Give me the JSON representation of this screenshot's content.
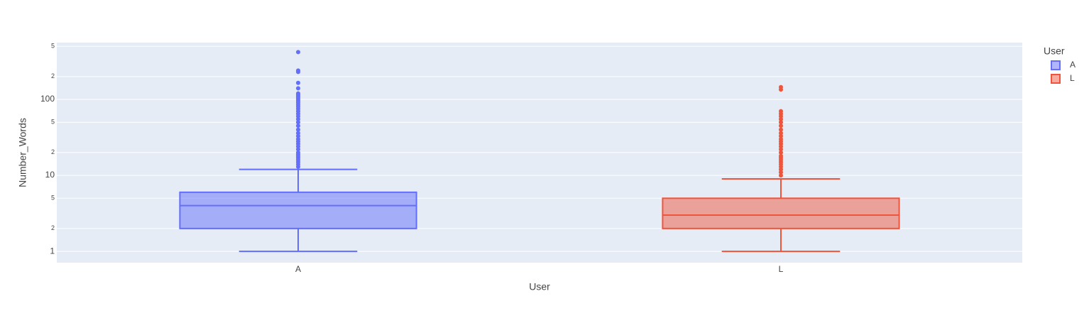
{
  "chart_data": {
    "type": "box",
    "x_label": "User",
    "y_label": "Number_Words",
    "legend_title": "User",
    "categories": [
      "A",
      "L"
    ],
    "log_y": true,
    "grid": true,
    "ylim": [
      0.71,
      560
    ],
    "yticks": [
      1,
      2,
      5,
      10,
      {
        "value": 20,
        "label": "2"
      },
      {
        "value": 50,
        "label": "5"
      },
      100,
      {
        "value": 200,
        "label": "2"
      },
      {
        "value": 500,
        "label": "5"
      }
    ],
    "series": [
      {
        "name": "A",
        "color": "#636efa",
        "lowerfence": 1,
        "q1": 2,
        "median": 4,
        "q3": 6,
        "upperfence": 12,
        "outliers": [
          13,
          14,
          15,
          16,
          17,
          18,
          19,
          20,
          22,
          24,
          26,
          28,
          30,
          33,
          36,
          40,
          45,
          50,
          55,
          60,
          65,
          70,
          75,
          80,
          85,
          90,
          95,
          100,
          105,
          110,
          115,
          120,
          140,
          165,
          230,
          240,
          420
        ]
      },
      {
        "name": "L",
        "color": "#EF553B",
        "lowerfence": 1,
        "q1": 2,
        "median": 3,
        "q3": 5,
        "upperfence": 9,
        "outliers": [
          10,
          11,
          12,
          13,
          14,
          15,
          16,
          17,
          18,
          20,
          22,
          24,
          26,
          28,
          30,
          33,
          36,
          40,
          45,
          50,
          55,
          60,
          65,
          70,
          135,
          145
        ]
      }
    ]
  }
}
